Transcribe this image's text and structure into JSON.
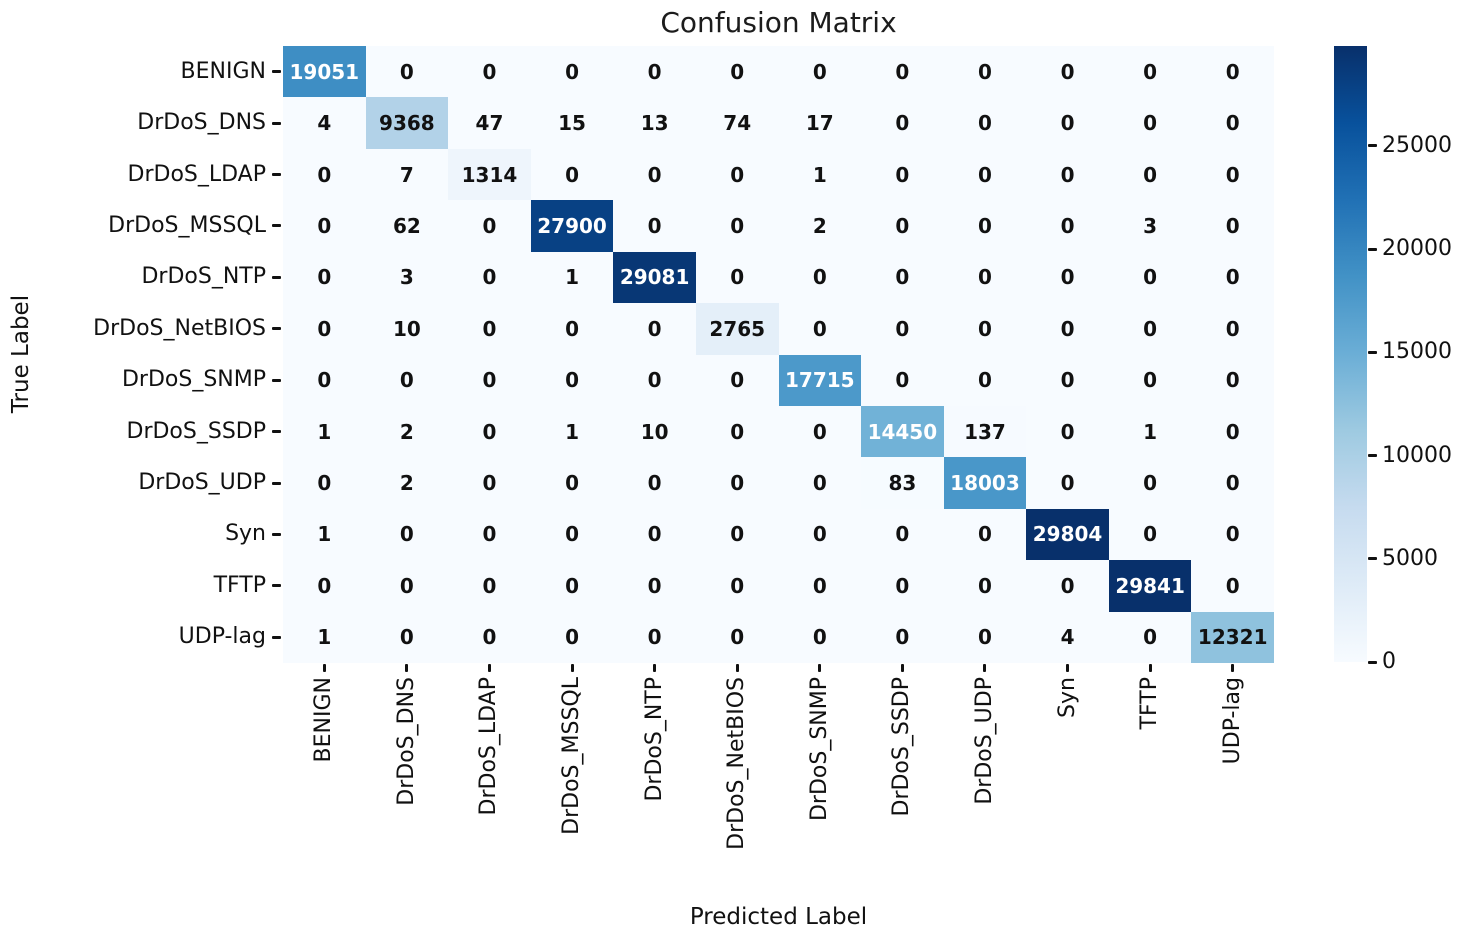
{
  "chart_data": {
    "type": "heatmap",
    "title": "Confusion Matrix",
    "xlabel": "Predicted Label",
    "ylabel": "True Label",
    "labels": [
      "BENIGN",
      "DrDoS_DNS",
      "DrDoS_LDAP",
      "DrDoS_MSSQL",
      "DrDoS_NTP",
      "DrDoS_NetBIOS",
      "DrDoS_SNMP",
      "DrDoS_SSDP",
      "DrDoS_UDP",
      "Syn",
      "TFTP",
      "UDP-lag"
    ],
    "matrix": [
      [
        19051,
        0,
        0,
        0,
        0,
        0,
        0,
        0,
        0,
        0,
        0,
        0
      ],
      [
        4,
        9368,
        47,
        15,
        13,
        74,
        17,
        0,
        0,
        0,
        0,
        0
      ],
      [
        0,
        7,
        1314,
        0,
        0,
        0,
        1,
        0,
        0,
        0,
        0,
        0
      ],
      [
        0,
        62,
        0,
        27900,
        0,
        0,
        2,
        0,
        0,
        0,
        3,
        0
      ],
      [
        0,
        3,
        0,
        1,
        29081,
        0,
        0,
        0,
        0,
        0,
        0,
        0
      ],
      [
        0,
        10,
        0,
        0,
        0,
        2765,
        0,
        0,
        0,
        0,
        0,
        0
      ],
      [
        0,
        0,
        0,
        0,
        0,
        0,
        17715,
        0,
        0,
        0,
        0,
        0
      ],
      [
        1,
        2,
        0,
        1,
        10,
        0,
        0,
        14450,
        137,
        0,
        1,
        0
      ],
      [
        0,
        2,
        0,
        0,
        0,
        0,
        0,
        83,
        18003,
        0,
        0,
        0
      ],
      [
        1,
        0,
        0,
        0,
        0,
        0,
        0,
        0,
        0,
        29804,
        0,
        0
      ],
      [
        0,
        0,
        0,
        0,
        0,
        0,
        0,
        0,
        0,
        0,
        29841,
        0
      ],
      [
        1,
        0,
        0,
        0,
        0,
        0,
        0,
        0,
        0,
        4,
        0,
        12321
      ]
    ],
    "colorbar": {
      "position": "right",
      "ticks": [
        0,
        5000,
        10000,
        15000,
        20000,
        25000
      ],
      "vmin": 0,
      "vmax": 29841
    },
    "colormap": {
      "name": "Blues",
      "stops": [
        "#f7fbff",
        "#deebf7",
        "#c6dbef",
        "#9ecae1",
        "#6baed6",
        "#4292c6",
        "#2171b5",
        "#08519c",
        "#08306b"
      ]
    },
    "annotation_colors": {
      "on_light": "#111111",
      "on_dark": "#ffffff"
    },
    "grid": false
  }
}
